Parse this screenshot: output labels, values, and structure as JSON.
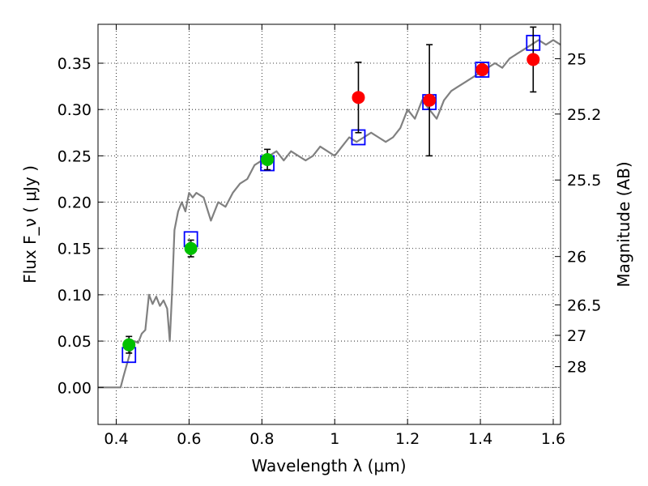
{
  "chart_data": {
    "type": "scatter",
    "xlabel": "Wavelength  λ (μm)",
    "ylabel": "Flux  F_ν  ( μJy )",
    "y2label": "Magnitude (AB)",
    "xlim": [
      0.35,
      1.62
    ],
    "ylim": [
      -0.04,
      0.392
    ],
    "grid": true,
    "x_ticks": [
      {
        "value": 0.4,
        "label": "0.4"
      },
      {
        "value": 0.6,
        "label": "0.6"
      },
      {
        "value": 0.8,
        "label": "0.8"
      },
      {
        "value": 1.0,
        "label": "1"
      },
      {
        "value": 1.2,
        "label": "1.2"
      },
      {
        "value": 1.4,
        "label": "1.4"
      },
      {
        "value": 1.6,
        "label": "1.6"
      }
    ],
    "y_ticks": [
      {
        "value": 0.0,
        "label": "0.00"
      },
      {
        "value": 0.05,
        "label": "0.05"
      },
      {
        "value": 0.1,
        "label": "0.10"
      },
      {
        "value": 0.15,
        "label": "0.15"
      },
      {
        "value": 0.2,
        "label": "0.20"
      },
      {
        "value": 0.25,
        "label": "0.25"
      },
      {
        "value": 0.3,
        "label": "0.30"
      },
      {
        "value": 0.35,
        "label": "0.35"
      }
    ],
    "y2_ticks": [
      {
        "flux": 0.3548,
        "label": "25"
      },
      {
        "flux": 0.2951,
        "label": "25.2"
      },
      {
        "flux": 0.2239,
        "label": "25.5"
      },
      {
        "flux": 0.1413,
        "label": "26"
      },
      {
        "flux": 0.0891,
        "label": "26.5"
      },
      {
        "flux": 0.0562,
        "label": "27"
      },
      {
        "flux": 0.0224,
        "label": "28"
      }
    ],
    "series": [
      {
        "kind": "line",
        "color": "#808080",
        "x": [
          0.35,
          0.412,
          0.42,
          0.43,
          0.44,
          0.45,
          0.46,
          0.47,
          0.48,
          0.49,
          0.5,
          0.51,
          0.52,
          0.53,
          0.54,
          0.547,
          0.553,
          0.56,
          0.57,
          0.58,
          0.59,
          0.6,
          0.61,
          0.62,
          0.64,
          0.66,
          0.68,
          0.7,
          0.72,
          0.74,
          0.76,
          0.78,
          0.8,
          0.82,
          0.84,
          0.86,
          0.88,
          0.9,
          0.92,
          0.94,
          0.96,
          0.98,
          1.0,
          1.02,
          1.04,
          1.06,
          1.08,
          1.1,
          1.12,
          1.14,
          1.16,
          1.18,
          1.2,
          1.22,
          1.24,
          1.26,
          1.28,
          1.3,
          1.32,
          1.34,
          1.36,
          1.38,
          1.4,
          1.42,
          1.44,
          1.46,
          1.48,
          1.5,
          1.52,
          1.54,
          1.56,
          1.58,
          1.6,
          1.62
        ],
        "y": [
          0.0,
          0.0,
          0.012,
          0.026,
          0.04,
          0.05,
          0.048,
          0.058,
          0.062,
          0.1,
          0.09,
          0.098,
          0.088,
          0.094,
          0.085,
          0.05,
          0.1,
          0.17,
          0.19,
          0.2,
          0.19,
          0.21,
          0.205,
          0.21,
          0.205,
          0.18,
          0.2,
          0.195,
          0.21,
          0.22,
          0.225,
          0.24,
          0.245,
          0.25,
          0.255,
          0.245,
          0.255,
          0.25,
          0.245,
          0.25,
          0.26,
          0.255,
          0.25,
          0.26,
          0.27,
          0.265,
          0.27,
          0.275,
          0.27,
          0.265,
          0.27,
          0.28,
          0.3,
          0.29,
          0.31,
          0.3,
          0.29,
          0.31,
          0.32,
          0.325,
          0.33,
          0.335,
          0.34,
          0.345,
          0.35,
          0.345,
          0.355,
          0.36,
          0.365,
          0.37,
          0.375,
          0.37,
          0.375,
          0.37
        ]
      },
      {
        "kind": "markers",
        "marker": "square",
        "color": "#0000ff",
        "x": [
          0.435,
          0.605,
          0.815,
          1.065,
          1.26,
          1.405,
          1.545
        ],
        "y": [
          0.035,
          0.16,
          0.242,
          0.27,
          0.308,
          0.343,
          0.372
        ]
      },
      {
        "kind": "markers",
        "marker": "circle",
        "color": "#00c000",
        "x": [
          0.435,
          0.605,
          0.815
        ],
        "y": [
          0.046,
          0.15,
          0.246
        ],
        "yerr": [
          0.009,
          0.009,
          0.011
        ]
      },
      {
        "kind": "markers",
        "marker": "circle",
        "color": "#ff0000",
        "x": [
          1.065,
          1.26,
          1.405,
          1.545
        ],
        "y": [
          0.313,
          0.31,
          0.343,
          0.354
        ],
        "yerr": [
          0.038,
          0.06,
          null,
          0.035
        ]
      }
    ]
  }
}
